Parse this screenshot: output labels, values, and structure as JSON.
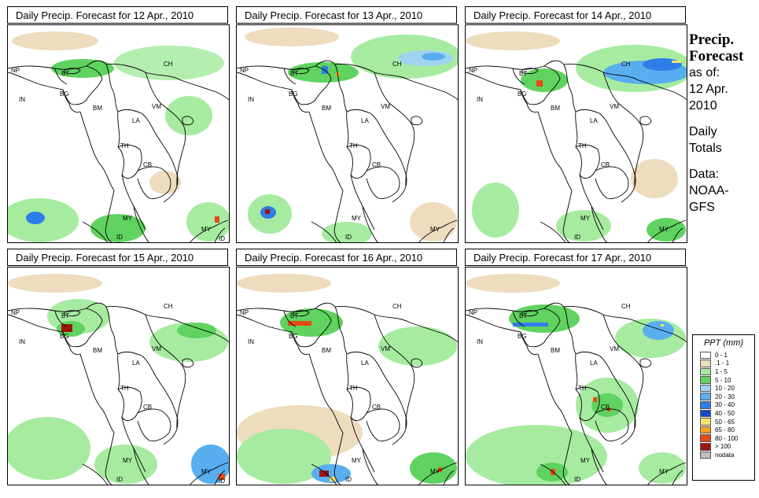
{
  "panels": [
    {
      "title": "Daily Precip. Forecast for  12 Apr., 2010"
    },
    {
      "title": "Daily Precip. Forecast for  13 Apr., 2010"
    },
    {
      "title": "Daily Precip. Forecast for  14 Apr., 2010"
    },
    {
      "title": "Daily Precip. Forecast for  15 Apr., 2010"
    },
    {
      "title": "Daily Precip. Forecast for  16 Apr., 2010"
    },
    {
      "title": "Daily Precip. Forecast for  17 Apr., 2010"
    }
  ],
  "region_labels": {
    "NP": "NP",
    "BT": "BT",
    "BG": "BG",
    "IN": "IN",
    "BM": "BM",
    "CH": "CH",
    "VM": "VM",
    "LA": "LA",
    "TH": "TH",
    "CB": "CB",
    "MY": "MY",
    "ID": "ID"
  },
  "side": {
    "title_line1": "Precip.",
    "title_line2": "Forecast",
    "asof": "as of:",
    "date_line1": "12 Apr.",
    "date_line2": "2010",
    "daily_line1": "Daily",
    "daily_line2": "Totals",
    "data_line1": "Data:",
    "data_line2": "NOAA-",
    "data_line3": "GFS"
  },
  "legend": {
    "title": "PPT (mm)",
    "items": [
      {
        "label": "0 - 1",
        "color": "#ffffff"
      },
      {
        "label": ".1 - 1",
        "color": "#eddcbe"
      },
      {
        "label": "1 - 5",
        "color": "#a6eba0"
      },
      {
        "label": "5 - 10",
        "color": "#5fd25f"
      },
      {
        "label": "10 - 20",
        "color": "#9fd3f0"
      },
      {
        "label": "20 - 30",
        "color": "#59aef0"
      },
      {
        "label": "30 - 40",
        "color": "#2f7de8"
      },
      {
        "label": "40 - 50",
        "color": "#1448c8"
      },
      {
        "label": "50 - 65",
        "color": "#f7e06e"
      },
      {
        "label": "65 - 80",
        "color": "#f6a31b"
      },
      {
        "label": "80 - 100",
        "color": "#e44a12"
      },
      {
        "label": "> 100",
        "color": "#9e1410"
      },
      {
        "label": "nodata",
        "color": "#c0c0c0"
      }
    ]
  }
}
